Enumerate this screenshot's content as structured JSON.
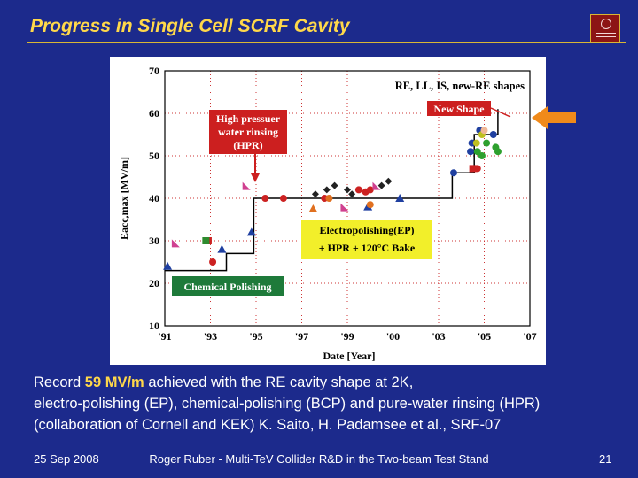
{
  "slide": {
    "title": "Progress in Single Cell SCRF Cavity",
    "caption": {
      "line1_pre": "Record ",
      "line1_highlight": "59 MV/m",
      "line1_post": " achieved with the RE cavity shape at 2K,",
      "line2": "electro-polishing (EP), chemical-polishing (BCP) and pure-water rinsing (HPR)",
      "line3": "(collaboration of Cornell and KEK) K. Saito, H. Padamsee et al., SRF-07"
    },
    "footer": {
      "date": "25 Sep 2008",
      "center": "Roger Ruber - Multi-TeV Collider R&D in the Two-beam Test Stand",
      "page": "21"
    },
    "colors": {
      "background": "#1c2a8c",
      "title": "#ffd84a",
      "arrow": "#f08a1a",
      "logo": "#8c1515"
    },
    "icons": {
      "logo": "university-seal-icon",
      "pointer": "left-arrow-icon"
    }
  },
  "chart_data": {
    "type": "scatter",
    "title": "",
    "xlabel": "Date [Year]",
    "ylabel": "Eacc,max [MV/m]",
    "x_ticks": [
      "'91",
      "'93",
      "'95",
      "'97",
      "'99",
      "'00",
      "'03",
      "'05",
      "'07"
    ],
    "xlim": [
      0,
      8
    ],
    "ylim": [
      10,
      70
    ],
    "y_ticks": [
      10,
      20,
      30,
      40,
      50,
      60,
      70
    ],
    "grid": true,
    "annotations": {
      "shapes": "RE, LL, IS, new-RE shapes",
      "new_shape": "New Shape",
      "hpr": [
        "High pressuer",
        "water rinsing",
        "(HPR)"
      ],
      "ep": [
        "Electropolishing(EP)",
        "+ HPR + 120°C Bake"
      ],
      "bcp": "Chemical Polishing"
    },
    "envelope": [
      [
        0,
        23
      ],
      [
        1.35,
        23
      ],
      [
        1.35,
        27
      ],
      [
        1.95,
        27
      ],
      [
        1.95,
        40
      ],
      [
        6.3,
        40
      ],
      [
        6.3,
        46
      ],
      [
        6.78,
        46
      ],
      [
        6.78,
        55
      ],
      [
        7.3,
        55
      ],
      [
        7.3,
        61
      ]
    ],
    "series": [
      {
        "marker": "triangle",
        "color": "#1f3fa0",
        "points": [
          [
            0.06,
            24
          ],
          [
            1.25,
            28
          ],
          [
            1.9,
            32
          ],
          [
            5.15,
            40
          ],
          [
            4.45,
            38
          ]
        ]
      },
      {
        "marker": "circle",
        "color": "#cc2222",
        "points": [
          [
            1.05,
            25
          ],
          [
            2.2,
            40
          ],
          [
            2.6,
            40
          ],
          [
            3.5,
            40
          ],
          [
            4.25,
            42
          ],
          [
            4.4,
            41.5
          ],
          [
            4.5,
            42
          ],
          [
            6.85,
            47
          ]
        ]
      },
      {
        "marker": "square",
        "color": "#cc2222",
        "points": [
          [
            0.95,
            30
          ],
          [
            6.75,
            47
          ]
        ]
      },
      {
        "marker": "square",
        "color": "#2e8b2e",
        "points": [
          [
            0.9,
            30
          ]
        ]
      },
      {
        "marker": "diamond",
        "color": "#222222",
        "points": [
          [
            3.3,
            41
          ],
          [
            3.55,
            42
          ],
          [
            3.72,
            43
          ],
          [
            4.0,
            42
          ],
          [
            4.75,
            43
          ],
          [
            4.9,
            44
          ],
          [
            4.1,
            41
          ]
        ]
      },
      {
        "marker": "circle",
        "color": "#e07020",
        "points": [
          [
            3.6,
            40
          ],
          [
            4.5,
            38.5
          ]
        ]
      },
      {
        "marker": "triangle",
        "color": "#e07020",
        "points": [
          [
            3.25,
            37.5
          ]
        ]
      },
      {
        "marker": "flag",
        "color": "#d04090",
        "points": [
          [
            0.25,
            29.5
          ],
          [
            1.8,
            43
          ],
          [
            4.65,
            43
          ],
          [
            3.95,
            38
          ]
        ]
      },
      {
        "marker": "circle",
        "color": "#2040a0",
        "points": [
          [
            6.33,
            46
          ],
          [
            6.73,
            53
          ],
          [
            6.7,
            51
          ],
          [
            6.9,
            56
          ],
          [
            7.2,
            55
          ]
        ]
      },
      {
        "marker": "circle",
        "color": "#2ea02e",
        "points": [
          [
            6.85,
            51
          ],
          [
            6.95,
            50
          ],
          [
            7.05,
            53
          ],
          [
            7.25,
            52
          ],
          [
            7.3,
            51
          ]
        ]
      },
      {
        "marker": "circle",
        "color": "#bfbf20",
        "points": [
          [
            6.83,
            53
          ],
          [
            6.95,
            55
          ]
        ]
      },
      {
        "marker": "circle",
        "color": "#f0b898",
        "points": [
          [
            7.0,
            56
          ]
        ]
      }
    ]
  }
}
